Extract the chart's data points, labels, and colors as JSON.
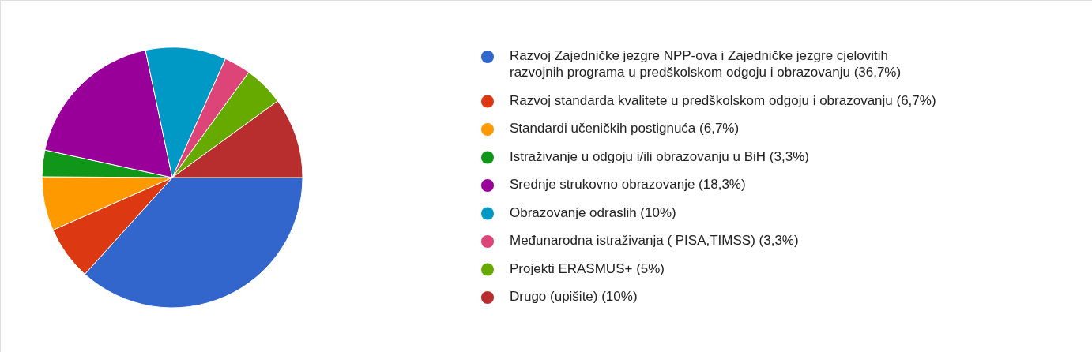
{
  "chart_data": {
    "type": "pie",
    "categories": [
      "Razvoj Zajedničke jezgre NPP-ova i Zajedničke jezgre cjelovitih razvojnih programa u predškolskom odgoju i obrazovanju (36,7%)",
      "Razvoj standarda kvalitete u predškolskom odgoju i obrazovanju (6,7%)",
      "Standardi učeničkih postignuća (6,7%)",
      "Istraživanje u odgoju i/ili obrazovanju u BiH (3,3%)",
      "Srednje strukovno obrazovanje (18,3%)",
      "Obrazovanje odraslih (10%)",
      "Međunarodna istraživanja ( PISA,TIMSS) (3,3%)",
      "Projekti  ERASMUS+ (5%)",
      "Drugo (upišite) (10%)"
    ],
    "values": [
      36.7,
      6.7,
      6.7,
      3.3,
      18.3,
      10,
      3.3,
      5,
      10
    ],
    "colors": [
      "#3366cc",
      "#dc3912",
      "#ff9900",
      "#109618",
      "#990099",
      "#0099c6",
      "#dd4477",
      "#66aa00",
      "#b82e2e"
    ],
    "legend": "right"
  }
}
